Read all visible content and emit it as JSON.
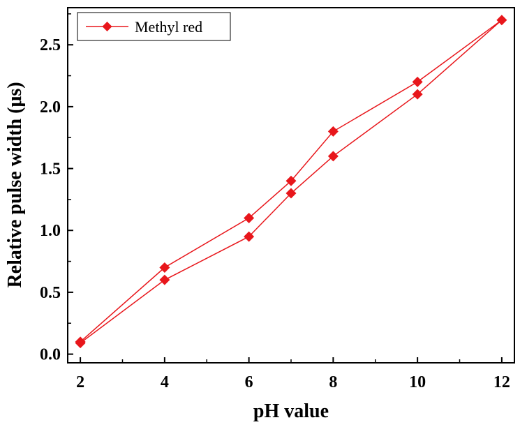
{
  "chart_data": {
    "type": "line",
    "title": "",
    "xlabel": "pH value",
    "ylabel": "Relative pulse width (μs)",
    "xlim": [
      1.7,
      12.3
    ],
    "ylim": [
      -0.07,
      2.8
    ],
    "xticks": [
      2,
      4,
      6,
      8,
      10,
      12
    ],
    "xtick_labels": [
      "2",
      "4",
      "6",
      "8",
      "10",
      "12"
    ],
    "yticks": [
      0.0,
      0.5,
      1.0,
      1.5,
      2.0,
      2.5
    ],
    "ytick_labels": [
      "0.0",
      "0.5",
      "1.0",
      "1.5",
      "2.0",
      "2.5"
    ],
    "grid": false,
    "legend_position": "top-left",
    "color": "#e8161b",
    "series": [
      {
        "name": "Methyl red",
        "marker": "diamond",
        "x": [
          2,
          4,
          6,
          7,
          8,
          10,
          12,
          10,
          8,
          7,
          6,
          4,
          2
        ],
        "values": [
          0.1,
          0.7,
          1.1,
          1.4,
          1.8,
          2.2,
          2.7,
          2.1,
          1.6,
          1.3,
          0.95,
          0.6,
          0.09
        ]
      }
    ]
  }
}
